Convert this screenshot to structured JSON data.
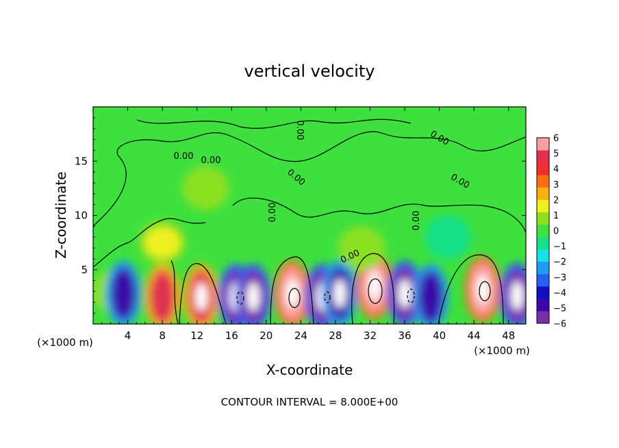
{
  "chart_data": {
    "type": "heatmap",
    "title": "vertical velocity",
    "xlabel": "X-coordinate",
    "ylabel": "Z-coordinate",
    "x_unit_label": "(×1000 m)",
    "x_unit_label_right": "(×1000 m)",
    "xlim": [
      0,
      50
    ],
    "ylim": [
      0,
      20
    ],
    "x_ticks": [
      4,
      8,
      12,
      16,
      20,
      24,
      28,
      32,
      36,
      40,
      44,
      48
    ],
    "x_tick_labels": [
      "4",
      "8",
      "12",
      "16",
      "20",
      "24",
      "28",
      "32",
      "36",
      "40",
      "44",
      "48"
    ],
    "y_ticks": [
      5,
      10,
      15
    ],
    "y_tick_labels": [
      "5",
      "10",
      "15"
    ],
    "colorbar": {
      "min": -6,
      "max": 6,
      "ticks": [
        6,
        5,
        4,
        3,
        2,
        1,
        0,
        -1,
        -2,
        -3,
        -4,
        -5,
        -6
      ],
      "tick_labels": [
        "6",
        "5",
        "4",
        "3",
        "2",
        "1",
        "0",
        "−1",
        "−2",
        "−3",
        "−4",
        "−5",
        "−6"
      ],
      "colors": [
        "#7a2fa8",
        "#3a0aa8",
        "#1010c0",
        "#2a5ff0",
        "#1e9df0",
        "#18e0e8",
        "#18e088",
        "#40e040",
        "#8ce020",
        "#f0f020",
        "#f8b010",
        "#f87010",
        "#f03030",
        "#e03050",
        "#f8a0a0"
      ]
    },
    "cells": [
      {
        "x": 2.5,
        "z": 3.0,
        "w": 0.9
      },
      {
        "x": 3.5,
        "z": 2.8,
        "w": -4.5
      },
      {
        "x": 8.0,
        "z": 2.5,
        "w": 4.5
      },
      {
        "x": 12.5,
        "z": 2.5,
        "w": 5.0
      },
      {
        "x": 16.5,
        "z": 2.5,
        "w": -5.5
      },
      {
        "x": 18.5,
        "z": 2.5,
        "w": -5.5
      },
      {
        "x": 23.0,
        "z": 2.8,
        "w": 5.5
      },
      {
        "x": 26.5,
        "z": 2.5,
        "w": -5.5
      },
      {
        "x": 28.5,
        "z": 2.8,
        "w": -5.0
      },
      {
        "x": 32.5,
        "z": 3.5,
        "w": 5.5
      },
      {
        "x": 36.0,
        "z": 2.8,
        "w": -5.5
      },
      {
        "x": 39.0,
        "z": 2.5,
        "w": -4.5
      },
      {
        "x": 45.0,
        "z": 3.2,
        "w": 5.8
      },
      {
        "x": 49.0,
        "z": 2.6,
        "w": -5.5
      },
      {
        "x": 8.0,
        "z": 7.5,
        "w": 1.2
      },
      {
        "x": 13.0,
        "z": 12.5,
        "w": 1.0
      },
      {
        "x": 31.0,
        "z": 7.0,
        "w": 1.0
      },
      {
        "x": 41.0,
        "z": 8.0,
        "w": -1.0
      }
    ],
    "contour_labels": [
      "0.00",
      "0.00",
      "0.00",
      "0.00",
      "0.00",
      "0.00",
      "0.00",
      "0.00",
      "0.00"
    ],
    "contour_interval_text": "CONTOUR INTERVAL = 8.000E+00",
    "grid": false
  }
}
